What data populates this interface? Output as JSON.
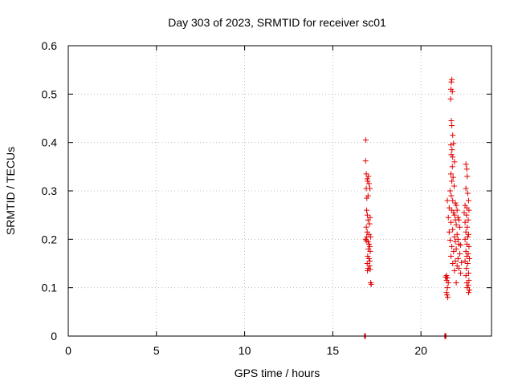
{
  "chart_data": {
    "type": "scatter",
    "title": "Day 303 of 2023, SRMTID for receiver sc01",
    "xlabel": "GPS time / hours",
    "ylabel": "SRMTID / TECUs",
    "xlim": [
      0,
      24
    ],
    "ylim": [
      0,
      0.6
    ],
    "xticks": [
      0,
      5,
      10,
      15,
      20
    ],
    "yticks": [
      0,
      0.1,
      0.2,
      0.3,
      0.4,
      0.5,
      0.6
    ],
    "xtick_labels": [
      "0",
      "5",
      "10",
      "15",
      "20"
    ],
    "ytick_labels": [
      "0",
      "0.1",
      "0.2",
      "0.3",
      "0.4",
      "0.5",
      "0.6"
    ],
    "grid": true,
    "series": [
      {
        "name": "SRMTID",
        "color": "#e00000",
        "marker": "plus",
        "points": [
          [
            16.8,
            0.0
          ],
          [
            16.82,
            0.0
          ],
          [
            16.85,
            0.0
          ],
          [
            16.87,
            0.405
          ],
          [
            16.86,
            0.362
          ],
          [
            16.9,
            0.335
          ],
          [
            16.95,
            0.325
          ],
          [
            16.98,
            0.32
          ],
          [
            17.02,
            0.33
          ],
          [
            17.05,
            0.315
          ],
          [
            16.9,
            0.305
          ],
          [
            17.0,
            0.29
          ],
          [
            16.93,
            0.285
          ],
          [
            17.1,
            0.305
          ],
          [
            16.92,
            0.26
          ],
          [
            16.96,
            0.25
          ],
          [
            17.0,
            0.24
          ],
          [
            17.12,
            0.245
          ],
          [
            17.08,
            0.232
          ],
          [
            16.9,
            0.225
          ],
          [
            16.95,
            0.215
          ],
          [
            17.05,
            0.21
          ],
          [
            17.15,
            0.205
          ],
          [
            16.86,
            0.2
          ],
          [
            16.9,
            0.197
          ],
          [
            16.93,
            0.205
          ],
          [
            17.0,
            0.195
          ],
          [
            17.05,
            0.19
          ],
          [
            17.1,
            0.185
          ],
          [
            17.02,
            0.18
          ],
          [
            17.12,
            0.175
          ],
          [
            16.98,
            0.165
          ],
          [
            17.05,
            0.16
          ],
          [
            17.1,
            0.155
          ],
          [
            16.95,
            0.15
          ],
          [
            17.08,
            0.145
          ],
          [
            17.0,
            0.14
          ],
          [
            17.12,
            0.138
          ],
          [
            16.97,
            0.135
          ],
          [
            17.15,
            0.11
          ],
          [
            17.18,
            0.107
          ],
          [
            21.35,
            0.0
          ],
          [
            21.38,
            0.0
          ],
          [
            21.42,
            0.0
          ],
          [
            21.75,
            0.53
          ],
          [
            21.72,
            0.525
          ],
          [
            21.7,
            0.51
          ],
          [
            21.78,
            0.505
          ],
          [
            21.68,
            0.49
          ],
          [
            21.72,
            0.445
          ],
          [
            21.75,
            0.435
          ],
          [
            21.8,
            0.415
          ],
          [
            21.7,
            0.395
          ],
          [
            21.85,
            0.398
          ],
          [
            21.76,
            0.385
          ],
          [
            21.72,
            0.375
          ],
          [
            21.8,
            0.37
          ],
          [
            21.9,
            0.36
          ],
          [
            21.78,
            0.35
          ],
          [
            21.7,
            0.335
          ],
          [
            21.82,
            0.328
          ],
          [
            21.75,
            0.32
          ],
          [
            21.88,
            0.31
          ],
          [
            21.65,
            0.3
          ],
          [
            21.72,
            0.29
          ],
          [
            21.5,
            0.28
          ],
          [
            21.8,
            0.28
          ],
          [
            21.95,
            0.275
          ],
          [
            22.0,
            0.27
          ],
          [
            21.6,
            0.265
          ],
          [
            21.75,
            0.26
          ],
          [
            22.05,
            0.26
          ],
          [
            21.85,
            0.255
          ],
          [
            21.9,
            0.25
          ],
          [
            22.1,
            0.245
          ],
          [
            21.55,
            0.245
          ],
          [
            21.95,
            0.24
          ],
          [
            22.15,
            0.24
          ],
          [
            21.7,
            0.235
          ],
          [
            22.0,
            0.23
          ],
          [
            22.2,
            0.225
          ],
          [
            21.8,
            0.22
          ],
          [
            21.6,
            0.215
          ],
          [
            22.05,
            0.21
          ],
          [
            21.9,
            0.205
          ],
          [
            22.1,
            0.2
          ],
          [
            21.65,
            0.198
          ],
          [
            21.95,
            0.195
          ],
          [
            22.15,
            0.19
          ],
          [
            22.25,
            0.188
          ],
          [
            21.75,
            0.185
          ],
          [
            22.0,
            0.18
          ],
          [
            21.85,
            0.175
          ],
          [
            22.2,
            0.17
          ],
          [
            21.7,
            0.165
          ],
          [
            22.1,
            0.16
          ],
          [
            21.95,
            0.155
          ],
          [
            22.3,
            0.152
          ],
          [
            21.8,
            0.15
          ],
          [
            22.05,
            0.145
          ],
          [
            22.15,
            0.14
          ],
          [
            21.9,
            0.135
          ],
          [
            22.25,
            0.13
          ],
          [
            21.45,
            0.125
          ],
          [
            21.4,
            0.122
          ],
          [
            21.5,
            0.12
          ],
          [
            21.45,
            0.115
          ],
          [
            21.55,
            0.11
          ],
          [
            22.0,
            0.11
          ],
          [
            21.5,
            0.1
          ],
          [
            21.45,
            0.09
          ],
          [
            21.48,
            0.085
          ],
          [
            21.52,
            0.08
          ],
          [
            22.55,
            0.355
          ],
          [
            22.6,
            0.345
          ],
          [
            22.62,
            0.33
          ],
          [
            22.55,
            0.305
          ],
          [
            22.65,
            0.295
          ],
          [
            22.7,
            0.28
          ],
          [
            22.5,
            0.27
          ],
          [
            22.6,
            0.265
          ],
          [
            22.72,
            0.26
          ],
          [
            22.45,
            0.255
          ],
          [
            22.58,
            0.25
          ],
          [
            22.68,
            0.24
          ],
          [
            22.5,
            0.235
          ],
          [
            22.62,
            0.225
          ],
          [
            22.55,
            0.215
          ],
          [
            22.7,
            0.21
          ],
          [
            22.65,
            0.205
          ],
          [
            22.5,
            0.2
          ],
          [
            22.6,
            0.19
          ],
          [
            22.72,
            0.185
          ],
          [
            22.55,
            0.175
          ],
          [
            22.68,
            0.17
          ],
          [
            22.6,
            0.165
          ],
          [
            22.75,
            0.16
          ],
          [
            22.5,
            0.155
          ],
          [
            22.65,
            0.15
          ],
          [
            22.58,
            0.14
          ],
          [
            22.7,
            0.13
          ],
          [
            22.55,
            0.125
          ],
          [
            22.72,
            0.115
          ],
          [
            22.6,
            0.11
          ],
          [
            22.68,
            0.105
          ],
          [
            22.62,
            0.1
          ],
          [
            22.75,
            0.095
          ],
          [
            22.7,
            0.09
          ]
        ]
      }
    ]
  }
}
